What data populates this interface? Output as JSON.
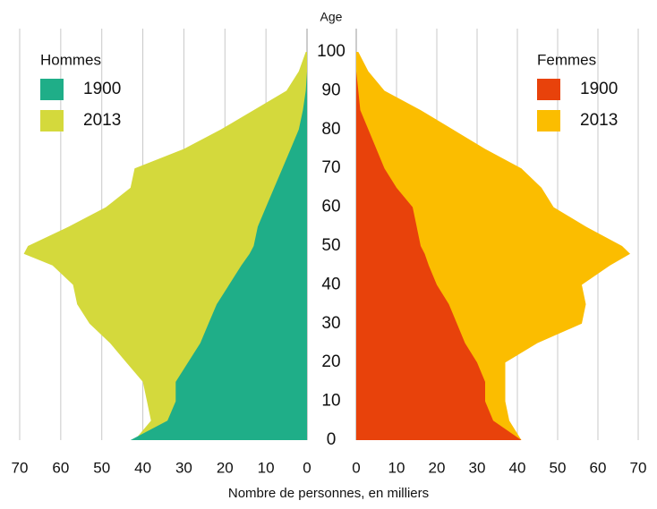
{
  "chart_data": {
    "type": "pyramid",
    "y_label": "Age",
    "x_label": "Nombre de personnes, en milliers",
    "ages": [
      0,
      5,
      10,
      15,
      20,
      25,
      30,
      35,
      40,
      45,
      48,
      50,
      55,
      60,
      65,
      70,
      75,
      80,
      85,
      90,
      95,
      100
    ],
    "groups": [
      {
        "name": "Hommes",
        "side": "left",
        "series": [
          {
            "name": "2013",
            "color": "#d4d93c",
            "values": [
              42,
              38,
              39,
              40,
              44,
              48,
              53,
              56,
              57,
              62,
              69,
              68,
              58,
              49,
              43,
              42,
              30,
              21,
              13,
              5,
              2,
              0.3
            ]
          },
          {
            "name": "1900",
            "color": "#1fae88",
            "values": [
              43,
              34,
              32,
              32,
              29,
              26,
              24,
              22,
              19,
              16,
              14,
              13,
              12,
              10,
              8,
              6,
              4,
              2,
              1,
              0.3,
              0,
              0
            ]
          }
        ]
      },
      {
        "name": "Femmes",
        "side": "right",
        "series": [
          {
            "name": "2013",
            "color": "#fbbd00",
            "values": [
              41,
              38,
              37,
              37,
              37,
              45,
              56,
              57,
              56,
              63,
              68,
              66,
              57,
              49,
              46,
              41,
              32,
              24,
              16,
              7,
              3,
              0.5
            ]
          },
          {
            "name": "1900",
            "color": "#e8420b",
            "values": [
              41,
              34,
              32,
              32,
              30,
              27,
              25,
              23,
              20,
              18,
              17,
              16,
              15,
              14,
              10,
              7,
              5,
              3,
              1,
              0.5,
              0,
              0
            ]
          }
        ]
      }
    ],
    "xlim": [
      0,
      70
    ],
    "xticks": [
      0,
      10,
      20,
      30,
      40,
      50,
      60,
      70
    ],
    "ylim": [
      0,
      100
    ],
    "yticks": [
      0,
      10,
      20,
      30,
      40,
      50,
      60,
      70,
      80,
      90,
      100
    ],
    "grid": true
  }
}
